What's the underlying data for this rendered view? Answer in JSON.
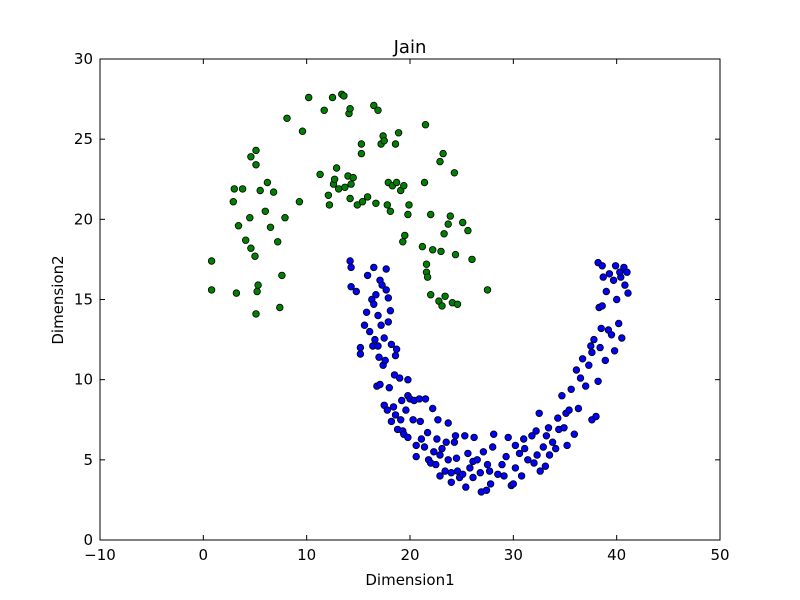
{
  "chart_data": {
    "type": "scatter",
    "title": "Jain",
    "xlabel": "Dimension1",
    "ylabel": "Dimension2",
    "xlim": [
      -10,
      50
    ],
    "ylim": [
      0,
      30
    ],
    "x_ticks": [
      "−10",
      "0",
      "10",
      "20",
      "30",
      "40",
      "50"
    ],
    "y_ticks": [
      "0",
      "5",
      "10",
      "15",
      "20",
      "25",
      "30"
    ],
    "grid": false,
    "legend": "none",
    "series": [
      {
        "color": "#008000",
        "points": [
          [
            0.8,
            17.4
          ],
          [
            0.8,
            15.6
          ],
          [
            2.9,
            21.1
          ],
          [
            3.0,
            21.9
          ],
          [
            3.2,
            15.4
          ],
          [
            3.4,
            19.6
          ],
          [
            3.8,
            21.9
          ],
          [
            4.1,
            18.7
          ],
          [
            4.5,
            20.1
          ],
          [
            4.6,
            23.9
          ],
          [
            4.6,
            18.2
          ],
          [
            5.1,
            24.3
          ],
          [
            5.0,
            17.7
          ],
          [
            5.1,
            23.4
          ],
          [
            5.2,
            15.5
          ],
          [
            5.1,
            14.1
          ],
          [
            5.3,
            15.9
          ],
          [
            5.5,
            21.8
          ],
          [
            6.0,
            20.5
          ],
          [
            6.2,
            22.3
          ],
          [
            6.5,
            19.5
          ],
          [
            6.8,
            21.7
          ],
          [
            7.2,
            18.6
          ],
          [
            7.4,
            14.5
          ],
          [
            7.6,
            16.5
          ],
          [
            7.9,
            20.1
          ],
          [
            8.1,
            26.3
          ],
          [
            9.3,
            21.1
          ],
          [
            9.6,
            25.5
          ],
          [
            10.2,
            27.6
          ],
          [
            11.3,
            22.8
          ],
          [
            11.7,
            26.8
          ],
          [
            12.1,
            21.5
          ],
          [
            12.2,
            20.9
          ],
          [
            12.5,
            27.6
          ],
          [
            12.6,
            22.2
          ],
          [
            12.7,
            22.5
          ],
          [
            12.9,
            23.2
          ],
          [
            13.1,
            21.9
          ],
          [
            13.4,
            27.8
          ],
          [
            13.6,
            27.7
          ],
          [
            13.7,
            22.0
          ],
          [
            14.0,
            22.7
          ],
          [
            14.1,
            26.6
          ],
          [
            14.2,
            21.3
          ],
          [
            14.2,
            26.9
          ],
          [
            14.3,
            22.2
          ],
          [
            14.5,
            22.6
          ],
          [
            14.9,
            20.9
          ],
          [
            15.3,
            24.7
          ],
          [
            15.3,
            24.1
          ],
          [
            15.4,
            21.1
          ],
          [
            15.9,
            21.4
          ],
          [
            16.5,
            27.1
          ],
          [
            16.7,
            21.0
          ],
          [
            16.9,
            26.8
          ],
          [
            17.2,
            24.7
          ],
          [
            17.4,
            25.2
          ],
          [
            17.5,
            24.9
          ],
          [
            17.8,
            20.9
          ],
          [
            17.9,
            22.3
          ],
          [
            18.1,
            20.5
          ],
          [
            18.3,
            22.1
          ],
          [
            18.6,
            24.7
          ],
          [
            18.7,
            22.3
          ],
          [
            18.9,
            25.4
          ],
          [
            19.1,
            21.8
          ],
          [
            19.4,
            22.1
          ],
          [
            19.5,
            19.0
          ],
          [
            19.3,
            18.6
          ],
          [
            19.8,
            20.3
          ],
          [
            19.9,
            20.9
          ],
          [
            21.2,
            18.3
          ],
          [
            21.5,
            25.9
          ],
          [
            21.4,
            22.3
          ],
          [
            21.6,
            17.2
          ],
          [
            21.6,
            16.7
          ],
          [
            21.7,
            16.4
          ],
          [
            22.0,
            20.3
          ],
          [
            22.2,
            18.1
          ],
          [
            22.0,
            15.3
          ],
          [
            22.8,
            14.9
          ],
          [
            22.9,
            23.6
          ],
          [
            23.0,
            18.0
          ],
          [
            23.2,
            24.1
          ],
          [
            23.1,
            14.6
          ],
          [
            23.3,
            19.1
          ],
          [
            23.4,
            15.2
          ],
          [
            23.7,
            19.7
          ],
          [
            23.9,
            20.2
          ],
          [
            24.1,
            14.8
          ],
          [
            24.3,
            22.9
          ],
          [
            24.6,
            14.7
          ],
          [
            24.4,
            17.8
          ],
          [
            25.1,
            19.8
          ],
          [
            25.6,
            19.3
          ],
          [
            26.0,
            17.5
          ],
          [
            27.5,
            15.6
          ]
        ]
      },
      {
        "color": "#0000ff",
        "points": [
          [
            14.2,
            17.4
          ],
          [
            14.3,
            17.0
          ],
          [
            14.3,
            15.8
          ],
          [
            14.8,
            15.5
          ],
          [
            15.2,
            12.0
          ],
          [
            15.2,
            11.6
          ],
          [
            15.6,
            13.4
          ],
          [
            15.8,
            14.2
          ],
          [
            15.9,
            16.5
          ],
          [
            16.1,
            13.0
          ],
          [
            16.3,
            15.0
          ],
          [
            16.4,
            12.1
          ],
          [
            16.5,
            14.7
          ],
          [
            16.6,
            12.5
          ],
          [
            16.5,
            17.0
          ],
          [
            16.7,
            15.3
          ],
          [
            16.9,
            14.0
          ],
          [
            16.9,
            12.1
          ],
          [
            17.0,
            11.4
          ],
          [
            16.8,
            9.6
          ],
          [
            17.1,
            16.2
          ],
          [
            17.2,
            13.4
          ],
          [
            17.3,
            15.9
          ],
          [
            17.1,
            9.7
          ],
          [
            17.4,
            10.9
          ],
          [
            17.5,
            12.6
          ],
          [
            17.5,
            8.4
          ],
          [
            17.6,
            11.2
          ],
          [
            17.7,
            16.9
          ],
          [
            17.8,
            8.1
          ],
          [
            17.7,
            15.6
          ],
          [
            17.9,
            13.6
          ],
          [
            17.9,
            15.1
          ],
          [
            18.0,
            9.5
          ],
          [
            18.1,
            14.3
          ],
          [
            18.2,
            12.2
          ],
          [
            18.2,
            7.4
          ],
          [
            18.4,
            8.3
          ],
          [
            18.5,
            10.3
          ],
          [
            18.6,
            11.5
          ],
          [
            18.7,
            11.9
          ],
          [
            18.6,
            7.8
          ],
          [
            18.8,
            6.9
          ],
          [
            19.0,
            10.1
          ],
          [
            19.1,
            7.5
          ],
          [
            19.2,
            8.7
          ],
          [
            19.3,
            6.8
          ],
          [
            19.4,
            6.6
          ],
          [
            19.6,
            8.1
          ],
          [
            19.8,
            9.0
          ],
          [
            19.8,
            10.0
          ],
          [
            19.8,
            6.4
          ],
          [
            20.0,
            8.8
          ],
          [
            20.3,
            7.5
          ],
          [
            20.4,
            8.7
          ],
          [
            20.6,
            5.9
          ],
          [
            20.6,
            5.2
          ],
          [
            20.9,
            8.8
          ],
          [
            21.1,
            6.3
          ],
          [
            21.0,
            7.4
          ],
          [
            21.4,
            5.8
          ],
          [
            21.5,
            8.8
          ],
          [
            21.7,
            6.7
          ],
          [
            21.8,
            5.0
          ],
          [
            22.0,
            4.8
          ],
          [
            22.2,
            8.2
          ],
          [
            22.3,
            5.5
          ],
          [
            22.5,
            4.7
          ],
          [
            22.6,
            6.3
          ],
          [
            22.7,
            7.5
          ],
          [
            22.9,
            5.3
          ],
          [
            22.9,
            4.0
          ],
          [
            23.1,
            5.7
          ],
          [
            23.4,
            4.3
          ],
          [
            23.5,
            6.1
          ],
          [
            23.7,
            5.0
          ],
          [
            23.7,
            7.3
          ],
          [
            24.0,
            4.2
          ],
          [
            24.0,
            3.6
          ],
          [
            24.3,
            6.1
          ],
          [
            24.4,
            6.5
          ],
          [
            24.5,
            5.1
          ],
          [
            24.6,
            4.3
          ],
          [
            24.8,
            3.9
          ],
          [
            25.1,
            4.1
          ],
          [
            25.4,
            3.3
          ],
          [
            25.3,
            6.5
          ],
          [
            25.6,
            5.4
          ],
          [
            25.8,
            4.5
          ],
          [
            26.1,
            3.9
          ],
          [
            26.1,
            4.9
          ],
          [
            26.2,
            6.4
          ],
          [
            26.5,
            5.0
          ],
          [
            26.8,
            4.2
          ],
          [
            26.9,
            3.0
          ],
          [
            27.1,
            5.5
          ],
          [
            27.4,
            3.1
          ],
          [
            27.5,
            4.7
          ],
          [
            27.7,
            4.3
          ],
          [
            27.8,
            3.5
          ],
          [
            28.0,
            5.8
          ],
          [
            28.1,
            6.6
          ],
          [
            28.5,
            4.1
          ],
          [
            28.9,
            4.7
          ],
          [
            29.1,
            4.0
          ],
          [
            29.3,
            5.2
          ],
          [
            29.5,
            6.4
          ],
          [
            29.8,
            3.4
          ],
          [
            30.0,
            3.5
          ],
          [
            30.2,
            4.5
          ],
          [
            30.2,
            5.9
          ],
          [
            30.6,
            5.4
          ],
          [
            30.8,
            4.0
          ],
          [
            31.0,
            6.3
          ],
          [
            31.1,
            5.7
          ],
          [
            31.4,
            5.0
          ],
          [
            31.8,
            6.5
          ],
          [
            32.0,
            4.8
          ],
          [
            32.2,
            6.8
          ],
          [
            32.3,
            5.3
          ],
          [
            32.5,
            7.9
          ],
          [
            32.6,
            4.3
          ],
          [
            32.9,
            5.8
          ],
          [
            33.1,
            4.6
          ],
          [
            33.2,
            6.5
          ],
          [
            33.5,
            5.3
          ],
          [
            33.4,
            7.0
          ],
          [
            33.8,
            6.1
          ],
          [
            34.1,
            5.7
          ],
          [
            34.3,
            7.6
          ],
          [
            34.4,
            6.9
          ],
          [
            34.7,
            9.0
          ],
          [
            34.9,
            7.0
          ],
          [
            35.1,
            7.9
          ],
          [
            35.2,
            5.9
          ],
          [
            35.4,
            8.1
          ],
          [
            35.6,
            9.4
          ],
          [
            35.9,
            6.6
          ],
          [
            36.1,
            10.6
          ],
          [
            36.3,
            8.2
          ],
          [
            36.5,
            10.1
          ],
          [
            36.7,
            11.3
          ],
          [
            37.0,
            9.6
          ],
          [
            37.3,
            10.9
          ],
          [
            37.5,
            12.1
          ],
          [
            37.6,
            11.7
          ],
          [
            37.8,
            12.5
          ],
          [
            37.6,
            7.5
          ],
          [
            38.0,
            7.7
          ],
          [
            38.2,
            9.9
          ],
          [
            38.4,
            12.0
          ],
          [
            38.5,
            13.2
          ],
          [
            38.3,
            14.5
          ],
          [
            38.6,
            14.6
          ],
          [
            38.2,
            17.3
          ],
          [
            38.6,
            17.1
          ],
          [
            38.7,
            16.4
          ],
          [
            38.9,
            11.2
          ],
          [
            39.0,
            15.5
          ],
          [
            39.2,
            13.1
          ],
          [
            39.3,
            16.6
          ],
          [
            39.5,
            12.8
          ],
          [
            39.7,
            16.2
          ],
          [
            39.8,
            11.8
          ],
          [
            40.0,
            15.0
          ],
          [
            40.2,
            13.5
          ],
          [
            40.4,
            16.4
          ],
          [
            40.5,
            12.6
          ],
          [
            40.7,
            17.0
          ],
          [
            40.8,
            15.9
          ],
          [
            41.0,
            16.7
          ],
          [
            41.1,
            15.4
          ],
          [
            39.9,
            17.1
          ],
          [
            40.3,
            16.7
          ]
        ]
      }
    ]
  }
}
